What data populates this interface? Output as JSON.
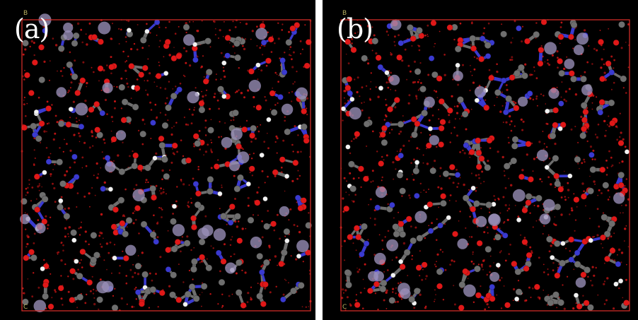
{
  "panels": [
    {
      "label": "(a)",
      "axis_top": "B",
      "axis_origin": "C"
    },
    {
      "label": "(b)",
      "axis_top": "B",
      "axis_origin": "C"
    }
  ],
  "colors": {
    "background": "#000000",
    "cell_border": "#e0302a",
    "oxygen": "#e01818",
    "carbon": "#6e6e6e",
    "nitrogen": "#3a3ad0",
    "hydrogen": "#f2f2f2",
    "metal": "#9a8fb8",
    "water_dots": "#c41414"
  }
}
